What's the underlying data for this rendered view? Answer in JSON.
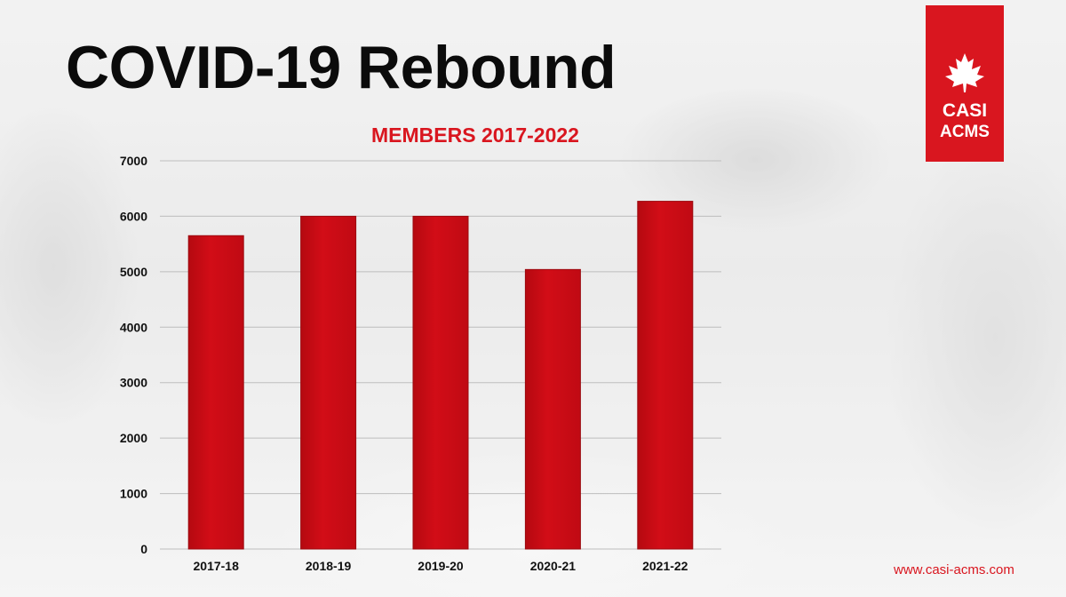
{
  "page": {
    "title": "COVID-19 Rebound",
    "website": "www.casi-acms.com",
    "logo": {
      "line1": "CASI",
      "line2": "ACMS",
      "icon": "maple-leaf-icon"
    }
  },
  "colors": {
    "bar": "#d20d17",
    "accent": "#d9161f",
    "title": "#0b0b0b",
    "grid": "#bdbdbd"
  },
  "chart_data": {
    "type": "bar",
    "title": "MEMBERS 2017-2022",
    "xlabel": "",
    "ylabel": "",
    "categories": [
      "2017-18",
      "2018-19",
      "2019-20",
      "2020-21",
      "2021-22"
    ],
    "values": [
      5650,
      6000,
      6000,
      5040,
      6270
    ],
    "ylim": [
      0,
      7000
    ],
    "yticks": [
      0,
      1000,
      2000,
      3000,
      4000,
      5000,
      6000,
      7000
    ],
    "grid": true,
    "legend": "none"
  }
}
